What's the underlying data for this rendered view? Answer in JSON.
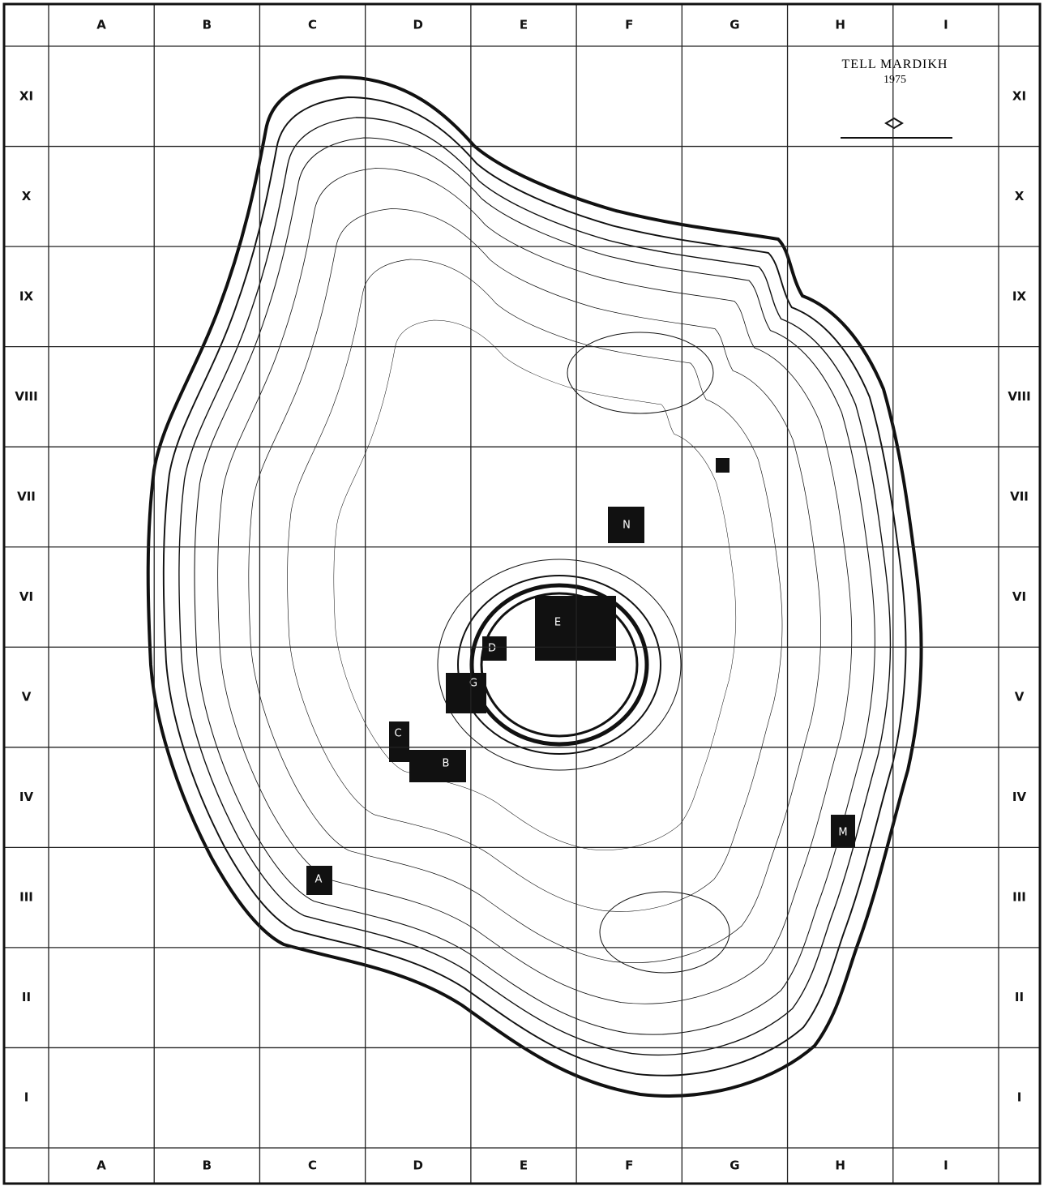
{
  "title": "TELL MARDIKH",
  "year": "1975",
  "columns": [
    "A",
    "B",
    "C",
    "D",
    "E",
    "F",
    "G",
    "H",
    "I"
  ],
  "rows": [
    "XI",
    "X",
    "IX",
    "VIII",
    "VII",
    "VI",
    "V",
    "IV",
    "III",
    "II",
    "I"
  ],
  "areas": [
    "A",
    "B",
    "C",
    "D",
    "E",
    "G",
    "M",
    "N"
  ]
}
